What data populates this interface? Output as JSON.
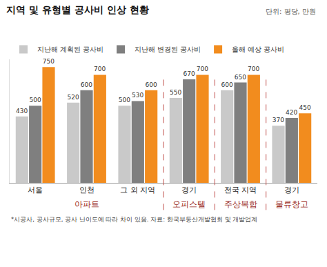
{
  "chart_data": {
    "type": "bar",
    "title": "지역 및 유형별 공사비 인상 현황",
    "subtitle": "단위: 평당, 만원",
    "categories": [
      "서울",
      "인천",
      "그 외 지역",
      "경기",
      "전국 지역",
      "경기"
    ],
    "groups": [
      {
        "label": "아파트",
        "count": 3
      },
      {
        "label": "오피스텔",
        "count": 1
      },
      {
        "label": "주상복합",
        "count": 1
      },
      {
        "label": "물류창고",
        "count": 1
      }
    ],
    "series": [
      {
        "name": "지난해 계획된 공사비",
        "color": "#c9c9c9",
        "values": [
          430,
          520,
          500,
          550,
          600,
          370
        ]
      },
      {
        "name": "지난해 변경된 공사비",
        "color": "#7f7f7f",
        "values": [
          500,
          600,
          530,
          670,
          650,
          420
        ]
      },
      {
        "name": "올해 예상 공사비",
        "color": "#f28c1e",
        "values": [
          750,
          700,
          600,
          700,
          700,
          450
        ]
      }
    ],
    "ylim": [
      0,
      800
    ],
    "data_labels": true,
    "tick_labels": "x",
    "legend": "top left",
    "note": "*시공사, 공사규모, 공사 난이도에 따라 차이 있음. 자료: 한국부동산개발협회 및 개발업계"
  }
}
